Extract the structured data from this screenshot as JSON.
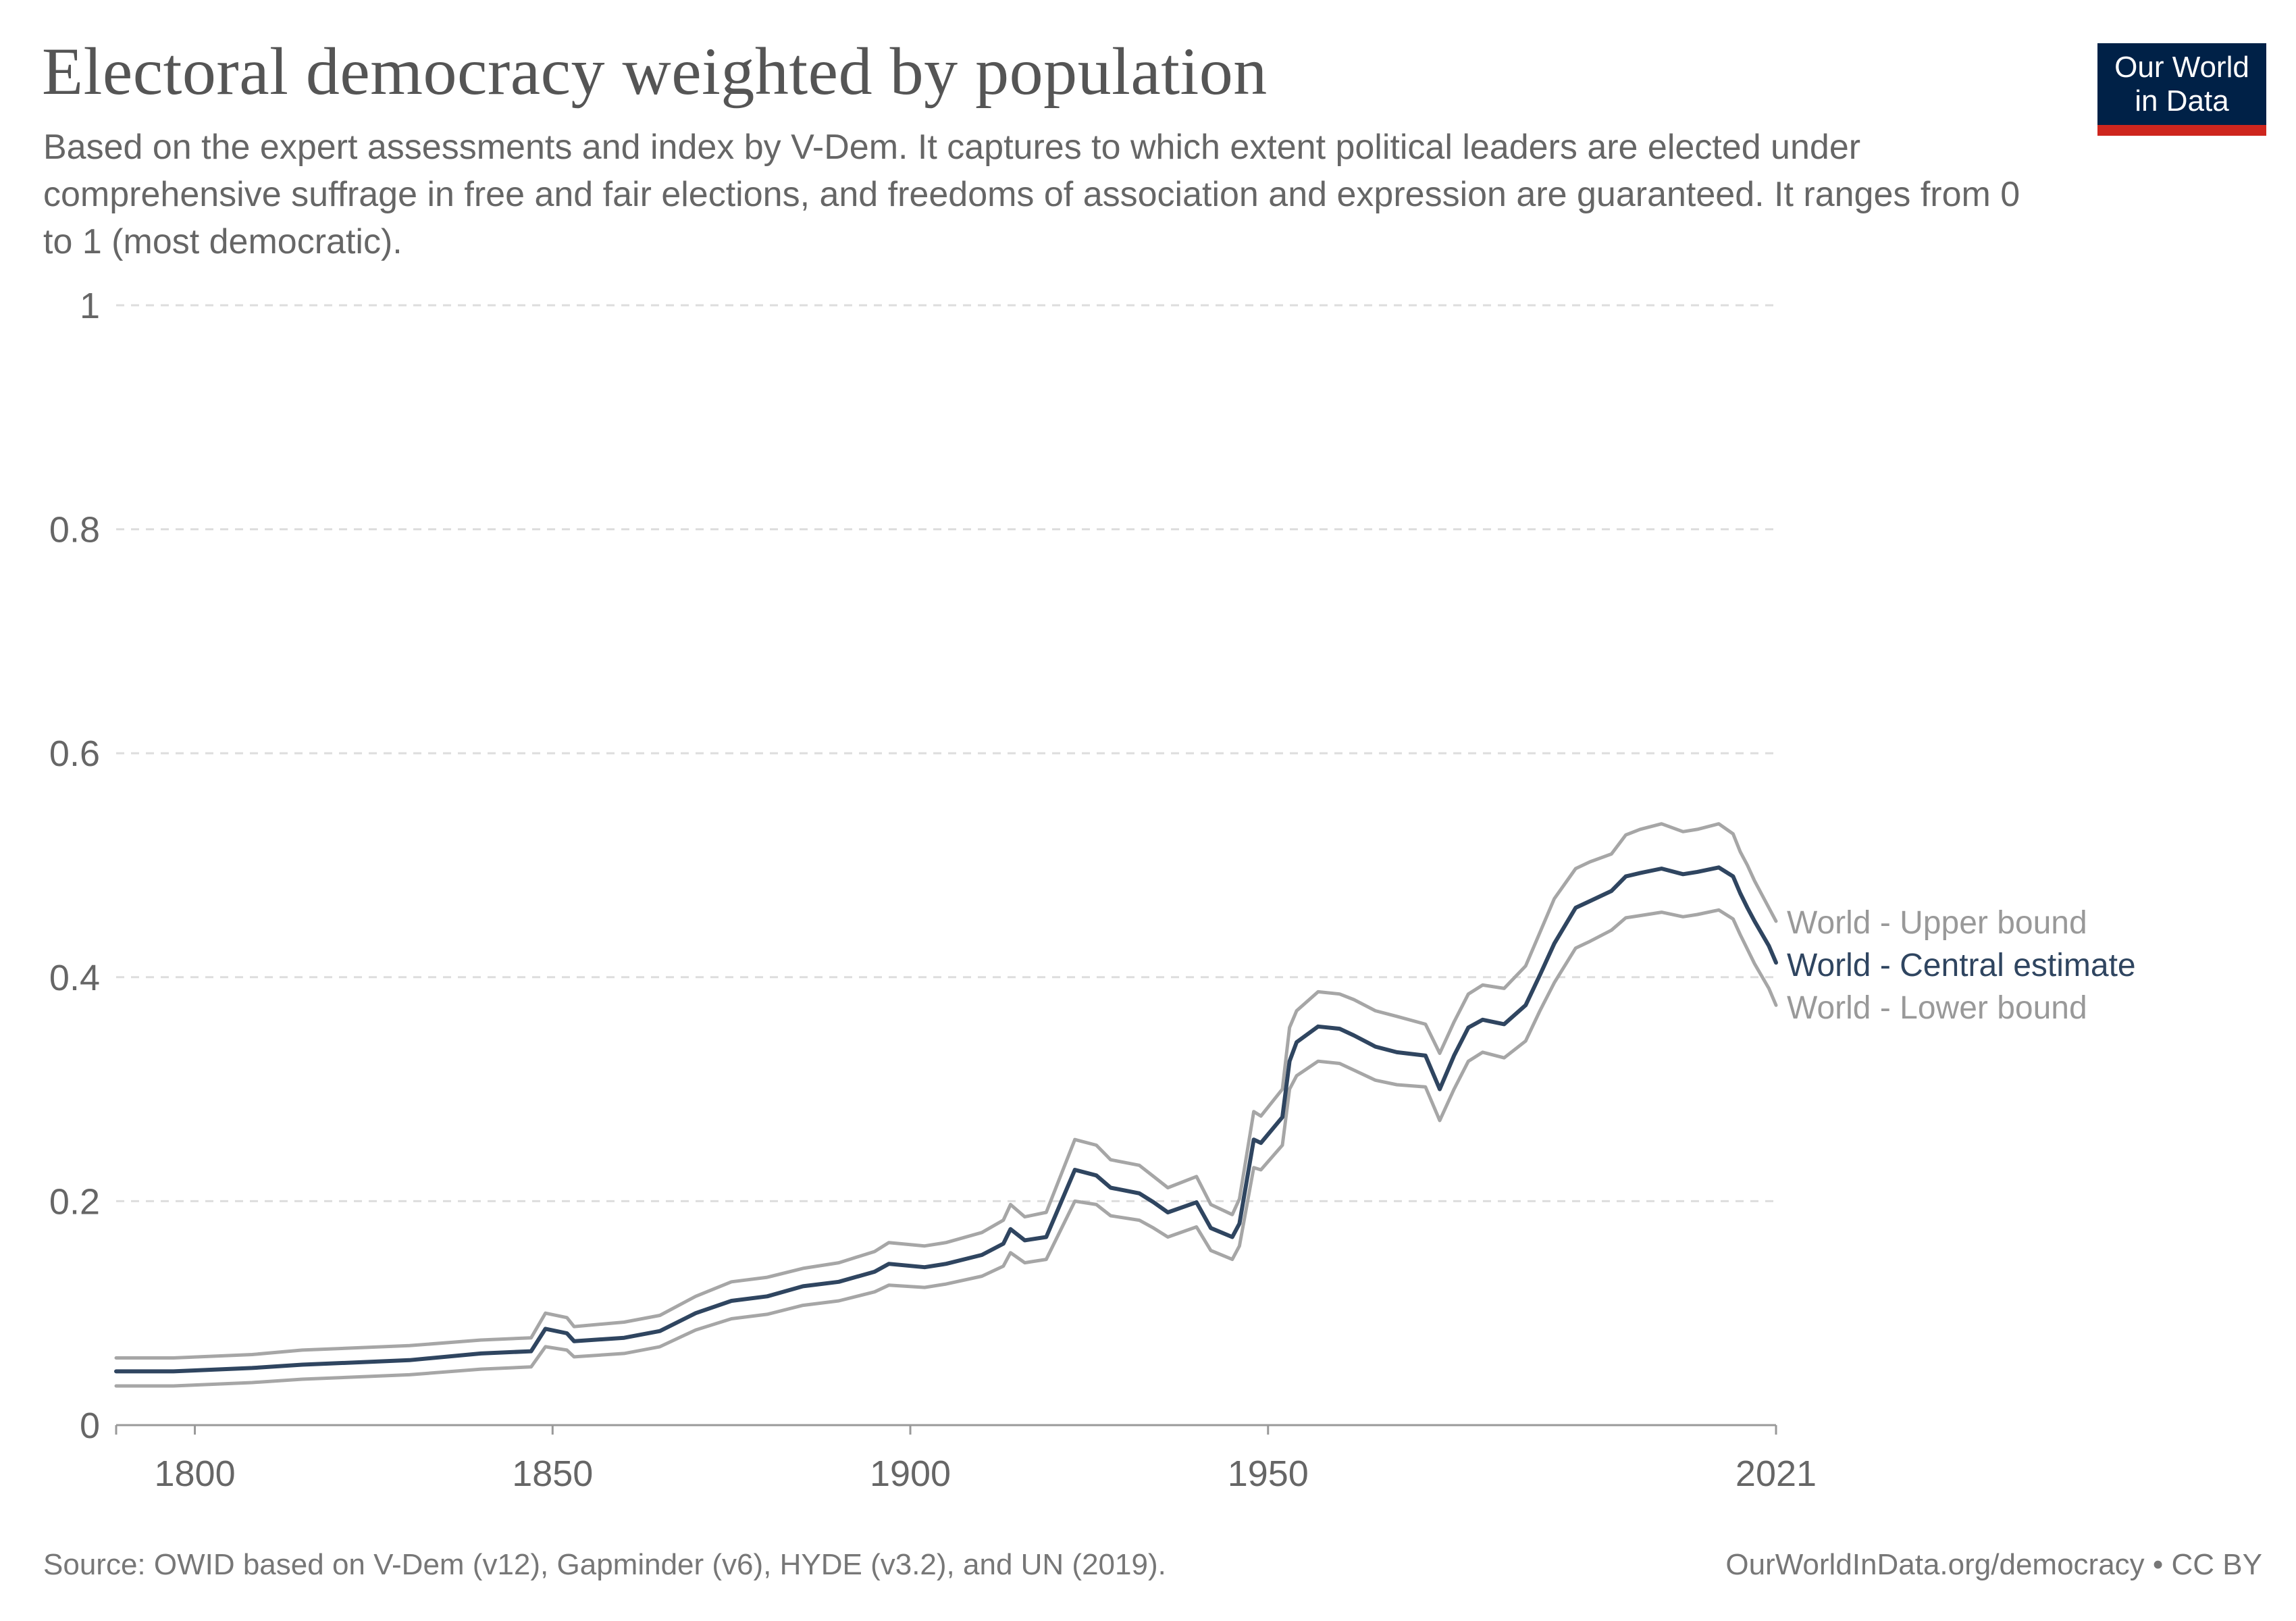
{
  "title": "Electoral democracy weighted by population",
  "subtitle": "Based on the expert assessments and index by V-Dem. It captures to which extent political leaders are elected under comprehensive suffrage in free and fair elections, and freedoms of association and expression are guaranteed. It ranges from 0 to 1 (most democratic).",
  "logo": {
    "line1": "Our World",
    "line2": "in Data"
  },
  "source": "Source: OWID based on V-Dem (v12), Gapminder (v6), HYDE (v3.2), and UN (2019).",
  "license": "OurWorldInData.org/democracy • CC BY",
  "colors": {
    "central": "#2f4560",
    "bounds": "#a6a6a6",
    "grid": "#dddddd",
    "axis": "#999999",
    "label_bounds": "#999999"
  },
  "chart_data": {
    "type": "line",
    "xlim": [
      1789,
      2021
    ],
    "ylim": [
      0,
      1
    ],
    "x_ticks": [
      "1800",
      "1850",
      "1900",
      "1950",
      "2021"
    ],
    "y_ticks": [
      "0",
      "0.2",
      "0.4",
      "0.6",
      "0.8",
      "1"
    ],
    "grid": "horizontal dashed",
    "legend": "right end labels",
    "series": [
      {
        "name": "World - Upper bound",
        "points": [
          [
            1789,
            0.06
          ],
          [
            1797,
            0.06
          ],
          [
            1808,
            0.063
          ],
          [
            1815,
            0.067
          ],
          [
            1830,
            0.071
          ],
          [
            1840,
            0.076
          ],
          [
            1847,
            0.078
          ],
          [
            1849,
            0.1
          ],
          [
            1852,
            0.096
          ],
          [
            1853,
            0.088
          ],
          [
            1860,
            0.092
          ],
          [
            1865,
            0.098
          ],
          [
            1870,
            0.115
          ],
          [
            1875,
            0.128
          ],
          [
            1880,
            0.132
          ],
          [
            1885,
            0.14
          ],
          [
            1890,
            0.145
          ],
          [
            1895,
            0.155
          ],
          [
            1897,
            0.163
          ],
          [
            1902,
            0.16
          ],
          [
            1905,
            0.163
          ],
          [
            1910,
            0.172
          ],
          [
            1913,
            0.183
          ],
          [
            1914,
            0.197
          ],
          [
            1916,
            0.186
          ],
          [
            1919,
            0.19
          ],
          [
            1923,
            0.255
          ],
          [
            1926,
            0.25
          ],
          [
            1928,
            0.237
          ],
          [
            1932,
            0.232
          ],
          [
            1934,
            0.222
          ],
          [
            1936,
            0.212
          ],
          [
            1940,
            0.222
          ],
          [
            1942,
            0.197
          ],
          [
            1945,
            0.188
          ],
          [
            1946,
            0.202
          ],
          [
            1948,
            0.28
          ],
          [
            1949,
            0.276
          ],
          [
            1952,
            0.3
          ],
          [
            1953,
            0.355
          ],
          [
            1954,
            0.37
          ],
          [
            1957,
            0.387
          ],
          [
            1960,
            0.385
          ],
          [
            1962,
            0.38
          ],
          [
            1965,
            0.37
          ],
          [
            1968,
            0.365
          ],
          [
            1972,
            0.358
          ],
          [
            1974,
            0.332
          ],
          [
            1976,
            0.36
          ],
          [
            1978,
            0.385
          ],
          [
            1980,
            0.393
          ],
          [
            1983,
            0.39
          ],
          [
            1986,
            0.41
          ],
          [
            1988,
            0.44
          ],
          [
            1990,
            0.47
          ],
          [
            1993,
            0.497
          ],
          [
            1995,
            0.503
          ],
          [
            1998,
            0.51
          ],
          [
            2000,
            0.527
          ],
          [
            2002,
            0.532
          ],
          [
            2005,
            0.537
          ],
          [
            2008,
            0.53
          ],
          [
            2010,
            0.532
          ],
          [
            2013,
            0.537
          ],
          [
            2015,
            0.528
          ],
          [
            2016,
            0.512
          ],
          [
            2017,
            0.5
          ],
          [
            2018,
            0.486
          ],
          [
            2020,
            0.462
          ],
          [
            2021,
            0.45
          ]
        ]
      },
      {
        "name": "World - Central estimate",
        "points": [
          [
            1789,
            0.048
          ],
          [
            1797,
            0.048
          ],
          [
            1808,
            0.051
          ],
          [
            1815,
            0.054
          ],
          [
            1830,
            0.058
          ],
          [
            1840,
            0.064
          ],
          [
            1847,
            0.066
          ],
          [
            1849,
            0.086
          ],
          [
            1852,
            0.082
          ],
          [
            1853,
            0.075
          ],
          [
            1860,
            0.078
          ],
          [
            1865,
            0.084
          ],
          [
            1870,
            0.1
          ],
          [
            1875,
            0.111
          ],
          [
            1880,
            0.115
          ],
          [
            1885,
            0.124
          ],
          [
            1890,
            0.128
          ],
          [
            1895,
            0.137
          ],
          [
            1897,
            0.144
          ],
          [
            1902,
            0.141
          ],
          [
            1905,
            0.144
          ],
          [
            1910,
            0.152
          ],
          [
            1913,
            0.162
          ],
          [
            1914,
            0.175
          ],
          [
            1916,
            0.165
          ],
          [
            1919,
            0.168
          ],
          [
            1923,
            0.228
          ],
          [
            1926,
            0.223
          ],
          [
            1928,
            0.212
          ],
          [
            1932,
            0.207
          ],
          [
            1934,
            0.199
          ],
          [
            1936,
            0.19
          ],
          [
            1940,
            0.199
          ],
          [
            1942,
            0.176
          ],
          [
            1945,
            0.168
          ],
          [
            1946,
            0.18
          ],
          [
            1948,
            0.255
          ],
          [
            1949,
            0.252
          ],
          [
            1952,
            0.275
          ],
          [
            1953,
            0.325
          ],
          [
            1954,
            0.342
          ],
          [
            1957,
            0.356
          ],
          [
            1960,
            0.354
          ],
          [
            1962,
            0.348
          ],
          [
            1965,
            0.338
          ],
          [
            1968,
            0.333
          ],
          [
            1972,
            0.33
          ],
          [
            1974,
            0.3
          ],
          [
            1976,
            0.33
          ],
          [
            1978,
            0.355
          ],
          [
            1980,
            0.362
          ],
          [
            1983,
            0.358
          ],
          [
            1986,
            0.375
          ],
          [
            1988,
            0.402
          ],
          [
            1990,
            0.43
          ],
          [
            1993,
            0.462
          ],
          [
            1995,
            0.468
          ],
          [
            1998,
            0.477
          ],
          [
            2000,
            0.49
          ],
          [
            2002,
            0.493
          ],
          [
            2005,
            0.497
          ],
          [
            2008,
            0.492
          ],
          [
            2010,
            0.494
          ],
          [
            2013,
            0.498
          ],
          [
            2015,
            0.49
          ],
          [
            2016,
            0.475
          ],
          [
            2017,
            0.462
          ],
          [
            2018,
            0.45
          ],
          [
            2020,
            0.428
          ],
          [
            2021,
            0.413
          ]
        ]
      },
      {
        "name": "World - Lower bound",
        "points": [
          [
            1789,
            0.035
          ],
          [
            1797,
            0.035
          ],
          [
            1808,
            0.038
          ],
          [
            1815,
            0.041
          ],
          [
            1830,
            0.045
          ],
          [
            1840,
            0.05
          ],
          [
            1847,
            0.052
          ],
          [
            1849,
            0.07
          ],
          [
            1852,
            0.067
          ],
          [
            1853,
            0.061
          ],
          [
            1860,
            0.064
          ],
          [
            1865,
            0.07
          ],
          [
            1870,
            0.085
          ],
          [
            1875,
            0.095
          ],
          [
            1880,
            0.099
          ],
          [
            1885,
            0.107
          ],
          [
            1890,
            0.111
          ],
          [
            1895,
            0.119
          ],
          [
            1897,
            0.125
          ],
          [
            1902,
            0.123
          ],
          [
            1905,
            0.126
          ],
          [
            1910,
            0.133
          ],
          [
            1913,
            0.142
          ],
          [
            1914,
            0.154
          ],
          [
            1916,
            0.145
          ],
          [
            1919,
            0.148
          ],
          [
            1923,
            0.2
          ],
          [
            1926,
            0.197
          ],
          [
            1928,
            0.187
          ],
          [
            1932,
            0.183
          ],
          [
            1934,
            0.176
          ],
          [
            1936,
            0.168
          ],
          [
            1940,
            0.177
          ],
          [
            1942,
            0.156
          ],
          [
            1945,
            0.148
          ],
          [
            1946,
            0.16
          ],
          [
            1948,
            0.23
          ],
          [
            1949,
            0.228
          ],
          [
            1952,
            0.25
          ],
          [
            1953,
            0.3
          ],
          [
            1954,
            0.312
          ],
          [
            1957,
            0.325
          ],
          [
            1960,
            0.323
          ],
          [
            1962,
            0.317
          ],
          [
            1965,
            0.308
          ],
          [
            1968,
            0.304
          ],
          [
            1972,
            0.302
          ],
          [
            1974,
            0.272
          ],
          [
            1976,
            0.3
          ],
          [
            1978,
            0.325
          ],
          [
            1980,
            0.333
          ],
          [
            1983,
            0.328
          ],
          [
            1986,
            0.343
          ],
          [
            1988,
            0.37
          ],
          [
            1990,
            0.395
          ],
          [
            1993,
            0.426
          ],
          [
            1995,
            0.432
          ],
          [
            1998,
            0.442
          ],
          [
            2000,
            0.453
          ],
          [
            2002,
            0.455
          ],
          [
            2005,
            0.458
          ],
          [
            2008,
            0.454
          ],
          [
            2010,
            0.456
          ],
          [
            2013,
            0.46
          ],
          [
            2015,
            0.452
          ],
          [
            2016,
            0.438
          ],
          [
            2017,
            0.425
          ],
          [
            2018,
            0.412
          ],
          [
            2020,
            0.39
          ],
          [
            2021,
            0.375
          ]
        ]
      }
    ]
  }
}
